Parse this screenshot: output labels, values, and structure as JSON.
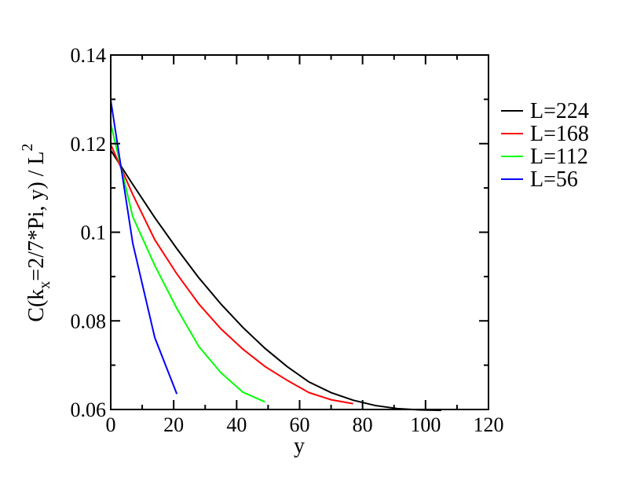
{
  "chart_data": {
    "type": "line",
    "title": "",
    "xlabel": "y",
    "ylabel": {
      "prefix": "C(k",
      "sub": "x",
      "mid": "=2/7*Pi, y) / L",
      "sup": "2"
    },
    "xlim": [
      0,
      120
    ],
    "ylim": [
      0.06,
      0.14
    ],
    "xticks": [
      0,
      20,
      40,
      60,
      80,
      100,
      120
    ],
    "xtick_labels": [
      "0",
      "20",
      "40",
      "60",
      "80",
      "100",
      "120"
    ],
    "yticks": [
      0.06,
      0.08,
      0.1,
      0.12,
      0.14
    ],
    "ytick_labels": [
      "0.06",
      "0.08",
      "0.1",
      "0.12",
      "0.14"
    ],
    "grid": false,
    "legend_position": "right",
    "series": [
      {
        "name": "L=224",
        "color": "#000000",
        "x": [
          0,
          7,
          14,
          21,
          28,
          35,
          42,
          49,
          56,
          63,
          70,
          77,
          84,
          91,
          98,
          105
        ],
        "y": [
          0.1185,
          0.1108,
          0.1033,
          0.0963,
          0.0897,
          0.0838,
          0.0785,
          0.0738,
          0.0697,
          0.0662,
          0.0638,
          0.0621,
          0.0609,
          0.0602,
          0.0599,
          0.0598
        ]
      },
      {
        "name": "L=168",
        "color": "#ff0000",
        "x": [
          0,
          7,
          14,
          21,
          28,
          35,
          42,
          49,
          56,
          63,
          70,
          77
        ],
        "y": [
          0.1198,
          0.1085,
          0.0983,
          0.0906,
          0.0838,
          0.0782,
          0.0736,
          0.0697,
          0.0666,
          0.0638,
          0.0622,
          0.0613
        ]
      },
      {
        "name": "L=112",
        "color": "#00ff00",
        "x": [
          0,
          7,
          14,
          21,
          28,
          35,
          42,
          49
        ],
        "y": [
          0.1245,
          0.1035,
          0.0925,
          0.0828,
          0.0742,
          0.0683,
          0.0639,
          0.0617
        ]
      },
      {
        "name": "L=56",
        "color": "#0000ff",
        "x": [
          0,
          7,
          14,
          21
        ],
        "y": [
          0.1298,
          0.0975,
          0.0762,
          0.0635
        ]
      }
    ]
  }
}
